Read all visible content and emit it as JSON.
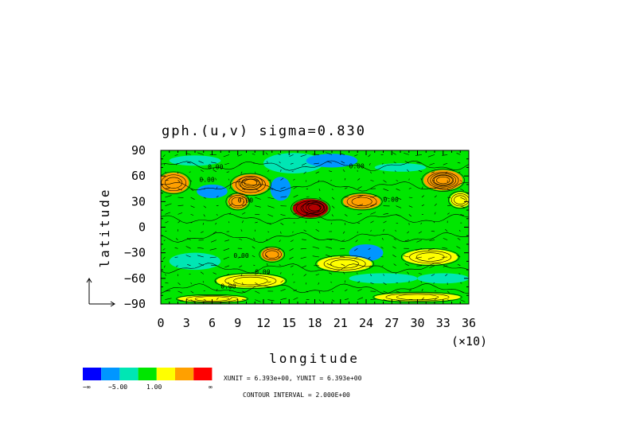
{
  "chart_data": {
    "type": "heatmap",
    "title": "gph.(u,v)  sigma=0.830",
    "xlabel": "longitude",
    "ylabel": "latitude",
    "x_scale_note": "(×10)",
    "xlim": [
      0,
      36
    ],
    "ylim": [
      -90,
      90
    ],
    "xticks": [
      "0",
      "3",
      "6",
      "9",
      "12",
      "15",
      "18",
      "21",
      "24",
      "27",
      "30",
      "33",
      "36"
    ],
    "yticks": [
      "90",
      "60",
      "30",
      "0",
      "−30",
      "−60",
      "−90"
    ],
    "ytick_values": [
      90,
      60,
      30,
      0,
      -30,
      -60,
      -90
    ],
    "grid": false,
    "contour_labels": [
      "0.00",
      "0.00",
      "0.00",
      "0.00",
      "0.00",
      "0.00",
      "0.00",
      "0.00"
    ],
    "colorbar": {
      "colors": [
        "#0000ff",
        "#0096ff",
        "#00e6b4",
        "#00e600",
        "#ffff00",
        "#ffa000",
        "#ff0000"
      ],
      "labels": [
        "−∞",
        "−5.00",
        "1.00",
        "∞"
      ]
    },
    "units_text": "XUNIT = 6.393e+00, YUNIT = 6.393e+00",
    "contour_text": "CONTOUR INTERVAL = 2.000E+00",
    "field_blobs": [
      {
        "lon": 17.5,
        "lat": 22,
        "rx": 2.1,
        "ry": 11,
        "level": "dark-red"
      },
      {
        "lon": 18,
        "lat": 23,
        "rx": 1.2,
        "ry": 7,
        "level": "red"
      },
      {
        "lon": 10.5,
        "lat": 50,
        "rx": 2.2,
        "ry": 12,
        "level": "orange"
      },
      {
        "lon": 10.5,
        "lat": 52,
        "rx": 1.2,
        "ry": 7,
        "level": "yellow"
      },
      {
        "lon": 33,
        "lat": 55,
        "rx": 2.3,
        "ry": 12,
        "level": "orange"
      },
      {
        "lon": 33,
        "lat": 55,
        "rx": 1.3,
        "ry": 7,
        "level": "yellow"
      },
      {
        "lon": 1.5,
        "lat": 52,
        "rx": 1.8,
        "ry": 12,
        "level": "orange"
      },
      {
        "lon": 9,
        "lat": 30,
        "rx": 1.2,
        "ry": 9,
        "level": "orange"
      },
      {
        "lon": 23.5,
        "lat": 30,
        "rx": 2.2,
        "ry": 9,
        "level": "orange"
      },
      {
        "lon": 35,
        "lat": 32,
        "rx": 1.2,
        "ry": 9,
        "level": "yellow"
      },
      {
        "lon": 13,
        "lat": -32,
        "rx": 1.3,
        "ry": 8,
        "level": "orange"
      },
      {
        "lon": 21.5,
        "lat": -43,
        "rx": 3.2,
        "ry": 9,
        "level": "yellow"
      },
      {
        "lon": 31.5,
        "lat": -35,
        "rx": 3.2,
        "ry": 9,
        "level": "yellow"
      },
      {
        "lon": 10.5,
        "lat": -63,
        "rx": 4,
        "ry": 8,
        "level": "yellow"
      },
      {
        "lon": 6,
        "lat": -84,
        "rx": 4,
        "ry": 4,
        "level": "yellow"
      },
      {
        "lon": 30,
        "lat": -82,
        "rx": 5,
        "ry": 5,
        "level": "yellow"
      },
      {
        "lon": 15.5,
        "lat": 75,
        "rx": 3.5,
        "ry": 12,
        "level": "teal"
      },
      {
        "lon": 20,
        "lat": 78,
        "rx": 3,
        "ry": 8,
        "level": "cyan"
      },
      {
        "lon": 14,
        "lat": 45,
        "rx": 1.2,
        "ry": 14,
        "level": "cyan"
      },
      {
        "lon": 6,
        "lat": 42,
        "rx": 1.8,
        "ry": 8,
        "level": "cyan"
      },
      {
        "lon": 4,
        "lat": 78,
        "rx": 3,
        "ry": 6,
        "level": "teal"
      },
      {
        "lon": 28,
        "lat": 70,
        "rx": 3,
        "ry": 5,
        "level": "teal"
      },
      {
        "lon": 4,
        "lat": -40,
        "rx": 3,
        "ry": 10,
        "level": "teal"
      },
      {
        "lon": 24,
        "lat": -30,
        "rx": 2,
        "ry": 10,
        "level": "cyan"
      },
      {
        "lon": 26,
        "lat": -60,
        "rx": 4,
        "ry": 6,
        "level": "teal"
      },
      {
        "lon": 33,
        "lat": -60,
        "rx": 3,
        "ry": 6,
        "level": "teal"
      }
    ]
  }
}
